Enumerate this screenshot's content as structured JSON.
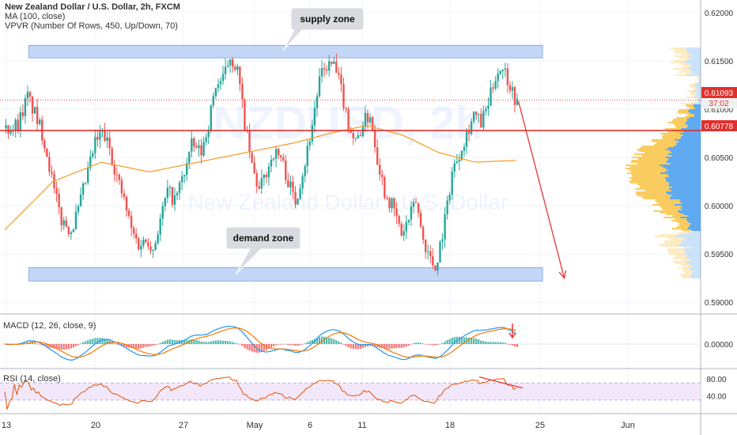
{
  "header": {
    "title": "New Zealand Dollar / U.S. Dollar, 2h, FXCM",
    "study_ma": "MA (100, close)",
    "study_vpvr": "VPVR (Number Of Rows, 450, Up/Down, 70)"
  },
  "watermark": {
    "symbol": "NZDUSD, 2h",
    "name": "New Zealand Dollar / U.S. Dollar"
  },
  "annotations": {
    "supply": "supply zone",
    "demand": "demand zone"
  },
  "price_tags": {
    "current": "0.61093",
    "countdown": "37:02",
    "level": "0.60778"
  },
  "colors": {
    "up": "#26a69a",
    "down": "#ef5350",
    "ma": "#f59a23",
    "zone": "#b8cff5",
    "level_line": "#e02020",
    "macd": "#2196f3",
    "signal": "#f57c00",
    "rsi": "#e65100",
    "rsi_band": "#f3e8fb",
    "vp_up": "#f9c74f",
    "vp_down": "#4ea1ef",
    "tag": "#e0302d"
  },
  "macd_pane": {
    "label": "MACD (12, 26, close, 9)",
    "tick": "0.00000"
  },
  "rsi_pane": {
    "label": "RSI (14, close)",
    "ticks": [
      "80.00",
      "40.00"
    ]
  },
  "chart_data": {
    "type": "candlestick",
    "title": "New Zealand Dollar / U.S. Dollar, 2h, FXCM",
    "price_axis": {
      "ticks": [
        0.62,
        0.615,
        0.61,
        0.605,
        0.6,
        0.595,
        0.59
      ],
      "tick_labels": [
        "0.62000",
        "0.61500",
        "0.61000",
        "0.60500",
        "0.60000",
        "0.59500",
        "0.59000"
      ],
      "range": [
        0.5892,
        0.6208
      ]
    },
    "x_axis": {
      "labels": [
        "13",
        "20",
        "27",
        "May",
        "6",
        "11",
        "18",
        "25",
        "Jun"
      ]
    },
    "price_path": [
      [
        0,
        0.608
      ],
      [
        5,
        0.6085
      ],
      [
        9,
        0.6113
      ],
      [
        12,
        0.6095
      ],
      [
        15,
        0.6075
      ],
      [
        17,
        0.6055
      ],
      [
        20,
        0.6015
      ],
      [
        23,
        0.5985
      ],
      [
        27,
        0.5975
      ],
      [
        30,
        0.5995
      ],
      [
        34,
        0.6035
      ],
      [
        37,
        0.6065
      ],
      [
        40,
        0.6075
      ],
      [
        43,
        0.606
      ],
      [
        46,
        0.603
      ],
      [
        49,
        0.6005
      ],
      [
        52,
        0.5975
      ],
      [
        55,
        0.596
      ],
      [
        59,
        0.5965
      ],
      [
        61,
        0.5955
      ],
      [
        64,
        0.5985
      ],
      [
        67,
        0.6015
      ],
      [
        70,
        0.6005
      ],
      [
        74,
        0.6035
      ],
      [
        77,
        0.6062
      ],
      [
        81,
        0.6055
      ],
      [
        84,
        0.6085
      ],
      [
        87,
        0.6125
      ],
      [
        90,
        0.613
      ],
      [
        93,
        0.6155
      ],
      [
        96,
        0.614
      ],
      [
        99,
        0.6085
      ],
      [
        102,
        0.604
      ],
      [
        105,
        0.6015
      ],
      [
        108,
        0.6035
      ],
      [
        111,
        0.6055
      ],
      [
        114,
        0.605
      ],
      [
        117,
        0.6025
      ],
      [
        120,
        0.6005
      ],
      [
        124,
        0.6045
      ],
      [
        127,
        0.6085
      ],
      [
        130,
        0.613
      ],
      [
        133,
        0.6145
      ],
      [
        136,
        0.6145
      ],
      [
        139,
        0.612
      ],
      [
        142,
        0.6085
      ],
      [
        145,
        0.6065
      ],
      [
        148,
        0.6085
      ],
      [
        151,
        0.6095
      ],
      [
        154,
        0.605
      ],
      [
        157,
        0.6015
      ],
      [
        161,
        0.5995
      ],
      [
        164,
        0.597
      ],
      [
        167,
        0.5985
      ],
      [
        170,
        0.6005
      ],
      [
        173,
        0.5965
      ],
      [
        176,
        0.5945
      ],
      [
        178,
        0.5935
      ],
      [
        182,
        0.5985
      ],
      [
        185,
        0.6035
      ],
      [
        188,
        0.6055
      ],
      [
        191,
        0.6075
      ],
      [
        194,
        0.6095
      ],
      [
        197,
        0.6085
      ],
      [
        200,
        0.6105
      ],
      [
        203,
        0.6135
      ],
      [
        206,
        0.6145
      ],
      [
        209,
        0.6125
      ],
      [
        212,
        0.6105
      ]
    ],
    "zones": [
      {
        "name": "supply zone",
        "low": 0.6153,
        "high": 0.6166,
        "x_from": 10,
        "x_to": 223
      },
      {
        "name": "demand zone",
        "low": 0.5922,
        "high": 0.5936,
        "x_from": 10,
        "x_to": 223
      }
    ],
    "levels": [
      0.60778
    ],
    "projection": {
      "from": [
        213,
        0.6108
      ],
      "to": [
        232,
        0.5925
      ]
    },
    "ma_100": [
      [
        0,
        0.5975
      ],
      [
        20,
        0.6025
      ],
      [
        40,
        0.6045
      ],
      [
        60,
        0.6035
      ],
      [
        80,
        0.6045
      ],
      [
        100,
        0.6055
      ],
      [
        120,
        0.6065
      ],
      [
        135,
        0.6075
      ],
      [
        150,
        0.6083
      ],
      [
        165,
        0.6073
      ],
      [
        180,
        0.6055
      ],
      [
        195,
        0.6045
      ],
      [
        212,
        0.6047
      ]
    ],
    "macd_axis": {
      "range": [
        -0.004,
        0.004
      ],
      "ticks": [
        0
      ]
    },
    "rsi_axis": {
      "range": [
        0,
        100
      ],
      "ticks": [
        80,
        40
      ],
      "band": [
        30,
        70
      ]
    }
  }
}
